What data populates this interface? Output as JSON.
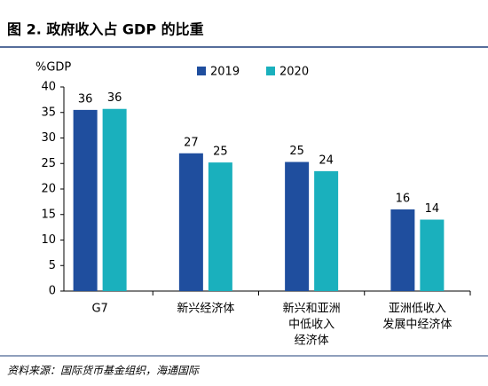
{
  "chart_data": {
    "type": "bar",
    "title": "图 2. 政府收入占 GDP 的比重",
    "y_label": "%GDP",
    "source": "资料来源：国际货币基金组织，海通国际",
    "categories": [
      [
        "G7"
      ],
      [
        "新兴经济体"
      ],
      [
        "新兴和亚洲",
        "中低收入",
        "经济体"
      ],
      [
        "亚洲低收入",
        "发展中经济体"
      ]
    ],
    "series": [
      {
        "name": "2019",
        "color": "#1f4e9e",
        "values": [
          35.5,
          27,
          25.3,
          16
        ],
        "value_labels": [
          "36",
          "27",
          "25",
          "16"
        ]
      },
      {
        "name": "2020",
        "color": "#1ab0bd",
        "values": [
          35.7,
          25.2,
          23.5,
          14
        ],
        "value_labels": [
          "36",
          "25",
          "24",
          "14"
        ]
      }
    ],
    "ylim": [
      0,
      40
    ],
    "yticks": [
      0,
      5,
      10,
      15,
      20,
      25,
      30,
      35,
      40
    ],
    "grid": false
  }
}
